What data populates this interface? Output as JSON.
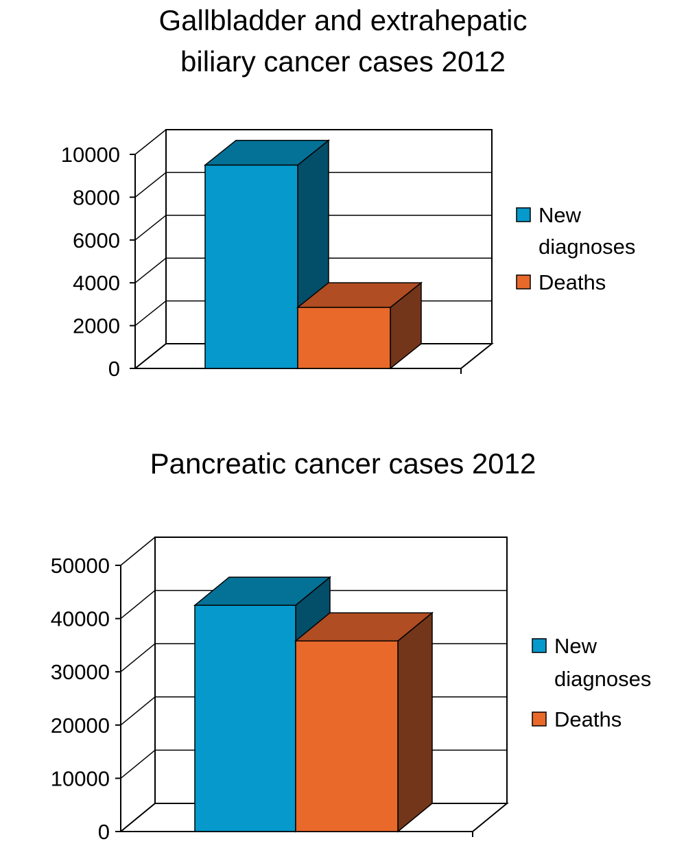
{
  "chart_data": [
    {
      "type": "bar",
      "title_lines": [
        "Gallbladder and extrahepatic",
        "biliary cancer cases 2012"
      ],
      "categories": [
        ""
      ],
      "series": [
        {
          "name": "New diagnoses",
          "values": [
            9500
          ],
          "color": "#0599CC",
          "top_color": "#047296",
          "side_color": "#034E68"
        },
        {
          "name": "Deaths",
          "values": [
            2850
          ],
          "color": "#E8692A",
          "top_color": "#B04D22",
          "side_color": "#73361A"
        }
      ],
      "ylim": [
        0,
        10000
      ],
      "yticks": [
        0,
        2000,
        4000,
        6000,
        8000,
        10000
      ],
      "ytick_labels": [
        "0",
        "2000",
        "4000",
        "6000",
        "8000",
        "10000"
      ],
      "grid": true,
      "three_d": true,
      "legend_labels": [
        [
          "New",
          "diagnoses"
        ],
        [
          "Deaths"
        ]
      ],
      "legend_position": "right"
    },
    {
      "type": "bar",
      "title_lines": [
        "Pancreatic cancer cases 2012"
      ],
      "categories": [
        ""
      ],
      "series": [
        {
          "name": "New diagnoses",
          "values": [
            42500
          ],
          "color": "#0599CC",
          "top_color": "#047296",
          "side_color": "#034E68"
        },
        {
          "name": "Deaths",
          "values": [
            35800
          ],
          "color": "#E8692A",
          "top_color": "#B04D22",
          "side_color": "#73361A"
        }
      ],
      "ylim": [
        0,
        50000
      ],
      "yticks": [
        0,
        10000,
        20000,
        30000,
        40000,
        50000
      ],
      "ytick_labels": [
        "0",
        "10000",
        "20000",
        "30000",
        "40000",
        "50000"
      ],
      "grid": true,
      "three_d": true,
      "legend_labels": [
        [
          "New",
          "diagnoses"
        ],
        [
          "Deaths"
        ]
      ],
      "legend_position": "right"
    }
  ]
}
